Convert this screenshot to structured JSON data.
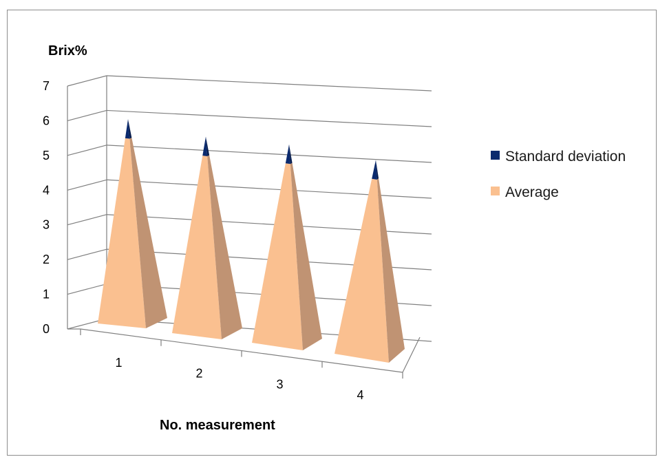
{
  "chart_data": {
    "type": "bar",
    "style": "3d-pyramid-stacked",
    "ylabel": "Brix%",
    "xlabel": "No. measurement",
    "categories": [
      "1",
      "2",
      "3",
      "4"
    ],
    "ylim": [
      0,
      7
    ],
    "yticks": [
      "0",
      "1",
      "2",
      "3",
      "4",
      "5",
      "6",
      "7"
    ],
    "series": [
      {
        "name": "Average",
        "values": [
          5.8,
          5.6,
          5.7,
          5.6
        ],
        "color": "#fac090"
      },
      {
        "name": "Standard deviation",
        "values": [
          0.6,
          0.6,
          0.6,
          0.6
        ],
        "color": "#0a2a6e"
      }
    ],
    "legend_position": "right",
    "grid": true
  }
}
